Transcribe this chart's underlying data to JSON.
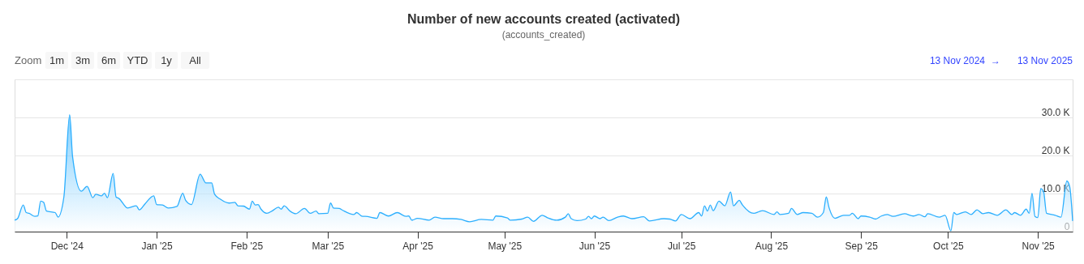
{
  "chart_data": {
    "type": "area",
    "title": "Number of new accounts created (activated)",
    "subtitle": "(accounts_created)",
    "annotations": [
      "Zoom",
      "1m",
      "3m",
      "6m",
      "YTD",
      "1y",
      "All",
      "13 Nov 2024",
      "→",
      "13 Nov 2025"
    ],
    "x": [
      "2024-11-13",
      "2024-11-14",
      "2024-11-16",
      "2024-11-17",
      "2024-11-18",
      "2024-11-20",
      "2024-11-21",
      "2024-11-22",
      "2024-11-23",
      "2024-11-24",
      "2024-11-27",
      "2024-11-28",
      "2024-11-30",
      "2024-12-02",
      "2024-12-03",
      "2024-12-06",
      "2024-12-08",
      "2024-12-10",
      "2024-12-11",
      "2024-12-13",
      "2024-12-14",
      "2024-12-15",
      "2024-12-17",
      "2024-12-18",
      "2024-12-19",
      "2024-12-22",
      "2024-12-25",
      "2024-12-26",
      "2024-12-28",
      "2024-12-31",
      "2025-01-01",
      "2025-01-03",
      "2025-01-05",
      "2025-01-08",
      "2025-01-10",
      "2025-01-11",
      "2025-01-13",
      "2025-01-16",
      "2025-01-18",
      "2025-01-20",
      "2025-01-21",
      "2025-01-23",
      "2025-01-26",
      "2025-01-28",
      "2025-01-29",
      "2025-01-31",
      "2025-02-02",
      "2025-02-03",
      "2025-02-04",
      "2025-02-05",
      "2025-02-06",
      "2025-02-08",
      "2025-02-10",
      "2025-02-12",
      "2025-02-13",
      "2025-02-14",
      "2025-02-16",
      "2025-02-18",
      "2025-02-21",
      "2025-02-23",
      "2025-02-25",
      "2025-02-26",
      "2025-03-01",
      "2025-03-02",
      "2025-03-03",
      "2025-03-05",
      "2025-03-06",
      "2025-03-10",
      "2025-03-11",
      "2025-03-13",
      "2025-03-14",
      "2025-03-18",
      "2025-03-19",
      "2025-03-22",
      "2025-03-25",
      "2025-03-28",
      "2025-03-29",
      "2025-03-30",
      "2025-04-01",
      "2025-04-05",
      "2025-04-07",
      "2025-04-10",
      "2025-04-13",
      "2025-04-16",
      "2025-04-19",
      "2025-04-23",
      "2025-04-27",
      "2025-04-28",
      "2025-05-02",
      "2025-05-03",
      "2025-05-07",
      "2025-05-09",
      "2025-05-11",
      "2025-05-14",
      "2025-05-16",
      "2025-05-19",
      "2025-05-22",
      "2025-05-23",
      "2025-05-24",
      "2025-05-26",
      "2025-05-29",
      "2025-05-30",
      "2025-05-31",
      "2025-06-01",
      "2025-06-03",
      "2025-06-04",
      "2025-06-06",
      "2025-06-09",
      "2025-06-11",
      "2025-06-14",
      "2025-06-18",
      "2025-06-20",
      "2025-06-25",
      "2025-06-27",
      "2025-06-29",
      "2025-07-01",
      "2025-07-04",
      "2025-07-07",
      "2025-07-08",
      "2025-07-09",
      "2025-07-10",
      "2025-07-11",
      "2025-07-12",
      "2025-07-14",
      "2025-07-16",
      "2025-07-18",
      "2025-07-19",
      "2025-07-21",
      "2025-07-22",
      "2025-07-26",
      "2025-07-28",
      "2025-07-29",
      "2025-08-02",
      "2025-08-03",
      "2025-08-04",
      "2025-08-07",
      "2025-08-08",
      "2025-08-10",
      "2025-08-12",
      "2025-08-15",
      "2025-08-17",
      "2025-08-19",
      "2025-08-20",
      "2025-08-21",
      "2025-08-23",
      "2025-08-26",
      "2025-08-28",
      "2025-08-29",
      "2025-08-31",
      "2025-09-01",
      "2025-09-04",
      "2025-09-06",
      "2025-09-08",
      "2025-09-10",
      "2025-09-12",
      "2025-09-16",
      "2025-09-19",
      "2025-09-21",
      "2025-09-23",
      "2025-09-24",
      "2025-09-28",
      "2025-09-30",
      "2025-10-02",
      "2025-10-03",
      "2025-10-04",
      "2025-10-07",
      "2025-10-09",
      "2025-10-11",
      "2025-10-13",
      "2025-10-15",
      "2025-10-18",
      "2025-10-21",
      "2025-10-23",
      "2025-10-24",
      "2025-10-26",
      "2025-10-28",
      "2025-10-29",
      "2025-10-30",
      "2025-10-31",
      "2025-11-01",
      "2025-11-02",
      "2025-11-03",
      "2025-11-04",
      "2025-11-07",
      "2025-11-09",
      "2025-11-11",
      "2025-11-12",
      "2025-11-13"
    ],
    "series": [
      {
        "color": "#2caffe",
        "values": [
          3000,
          3400,
          7000,
          5000,
          4800,
          4000,
          4100,
          8000,
          7700,
          5400,
          5000,
          3800,
          9100,
          30700,
          19700,
          10600,
          11900,
          8900,
          9800,
          9400,
          10100,
          8900,
          15300,
          9100,
          8700,
          6200,
          6800,
          5700,
          7300,
          9400,
          7100,
          7000,
          6200,
          6600,
          10100,
          8200,
          7100,
          15100,
          12800,
          12800,
          9800,
          8500,
          7500,
          7700,
          6800,
          6700,
          5900,
          8000,
          7000,
          7100,
          5900,
          4800,
          5500,
          6400,
          5900,
          6800,
          5400,
          4700,
          6100,
          4800,
          5400,
          4700,
          4800,
          7500,
          6200,
          6100,
          5700,
          4500,
          5000,
          4000,
          4000,
          3500,
          5000,
          4100,
          5000,
          4000,
          4100,
          3000,
          3500,
          3000,
          3800,
          3400,
          3400,
          3200,
          2600,
          3200,
          3000,
          4100,
          3600,
          3000,
          3300,
          3800,
          2700,
          4300,
          3600,
          3000,
          3800,
          4700,
          3400,
          2900,
          3300,
          4000,
          3400,
          4100,
          3400,
          3800,
          2900,
          3800,
          4100,
          3400,
          3900,
          2800,
          3400,
          3300,
          2800,
          4500,
          3400,
          5000,
          4100,
          6800,
          5400,
          7000,
          5500,
          8000,
          6800,
          10400,
          6800,
          8200,
          7100,
          4800,
          5300,
          5500,
          4500,
          5200,
          4500,
          4800,
          6100,
          4500,
          5000,
          4800,
          3800,
          5000,
          9100,
          6200,
          3500,
          4300,
          4300,
          4800,
          3400,
          4100,
          3800,
          3300,
          4100,
          4500,
          4000,
          4700,
          4100,
          4500,
          3900,
          4700,
          3800,
          4300,
          200,
          5000,
          4500,
          5200,
          4500,
          5700,
          4700,
          5000,
          4300,
          5700,
          4500,
          5000,
          4300,
          5900,
          4800,
          10100,
          4000,
          3700,
          11300,
          10400,
          4800,
          4300,
          3800,
          13300,
          11800,
          2800
        ]
      }
    ],
    "xlim": [
      "2024-11-13",
      "2025-11-13"
    ],
    "xticks": [
      {
        "value": "2024-12-01",
        "label": "Dec '24"
      },
      {
        "value": "2025-01-01",
        "label": "Jan '25"
      },
      {
        "value": "2025-02-01",
        "label": "Feb '25"
      },
      {
        "value": "2025-03-01",
        "label": "Mar '25"
      },
      {
        "value": "2025-04-01",
        "label": "Apr '25"
      },
      {
        "value": "2025-05-01",
        "label": "May '25"
      },
      {
        "value": "2025-06-01",
        "label": "Jun '25"
      },
      {
        "value": "2025-07-01",
        "label": "Jul '25"
      },
      {
        "value": "2025-08-01",
        "label": "Aug '25"
      },
      {
        "value": "2025-09-01",
        "label": "Sep '25"
      },
      {
        "value": "2025-10-01",
        "label": "Oct '25"
      },
      {
        "value": "2025-11-01",
        "label": "Nov '25"
      }
    ],
    "ylim": [
      0,
      40000
    ],
    "yticks": [
      0,
      {
        "value": 10000,
        "label": "10.0 K"
      },
      {
        "value": 20000,
        "label": "20.0 K"
      },
      {
        "value": 30000,
        "label": "30.0 K"
      },
      {
        "value": 40000,
        "label": null
      }
    ],
    "grid": "y"
  }
}
